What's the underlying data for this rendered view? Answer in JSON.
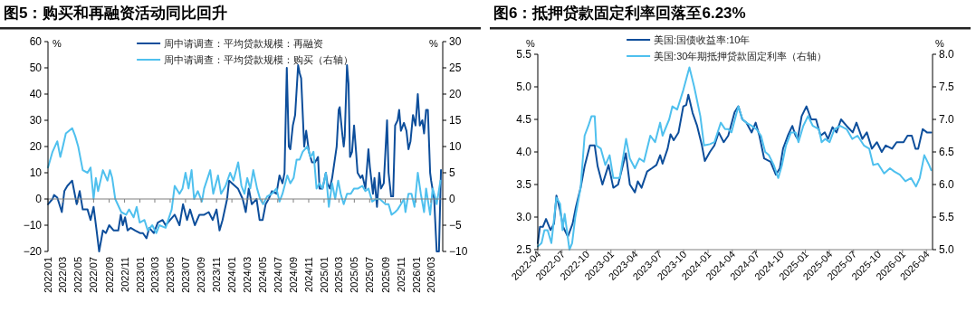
{
  "chart_data": [
    {
      "type": "line",
      "title": "图5：购买和再融资活动同比回升",
      "ylabel": "%",
      "y2label": "%",
      "legend": "top",
      "xlim": [
        "2022-01-01",
        "2026-04-17"
      ],
      "xticks": [
        {
          "value": "2022-01-01",
          "label": "2022/01"
        },
        {
          "value": "2022-03-01",
          "label": "2022/03"
        },
        {
          "value": "2022-05-01",
          "label": "2022/05"
        },
        {
          "value": "2022-07-01",
          "label": "2022/07"
        },
        {
          "value": "2022-09-01",
          "label": "2022/09"
        },
        {
          "value": "2022-11-01",
          "label": "2022/11"
        },
        {
          "value": "2023-01-01",
          "label": "2023/01"
        },
        {
          "value": "2023-03-01",
          "label": "2023/03"
        },
        {
          "value": "2023-05-01",
          "label": "2023/05"
        },
        {
          "value": "2023-07-01",
          "label": "2023/07"
        },
        {
          "value": "2023-09-01",
          "label": "2023/09"
        },
        {
          "value": "2023-11-01",
          "label": "2023/11"
        },
        {
          "value": "2024-01-01",
          "label": "2024/01"
        },
        {
          "value": "2024-03-01",
          "label": "2024/03"
        },
        {
          "value": "2024-05-01",
          "label": "2024/05"
        },
        {
          "value": "2024-07-01",
          "label": "2024/07"
        },
        {
          "value": "2024-09-01",
          "label": "2024/09"
        },
        {
          "value": "2024-11-01",
          "label": "2024/11"
        },
        {
          "value": "2025-01-01",
          "label": "2025/01"
        },
        {
          "value": "2025-03-01",
          "label": "2025/03"
        },
        {
          "value": "2025-05-01",
          "label": "2025/05"
        },
        {
          "value": "2025-07-01",
          "label": "2025/07"
        },
        {
          "value": "2025-09-01",
          "label": "2025/09"
        },
        {
          "value": "2025-11-01",
          "label": "2025/11"
        },
        {
          "value": "2026-01-01",
          "label": "2026/01"
        },
        {
          "value": "2026-03-01",
          "label": "2026/03"
        }
      ],
      "ylim": [
        -20,
        60
      ],
      "yticks": [
        {
          "value": -20,
          "label": "−20"
        },
        {
          "value": -10,
          "label": "−10"
        },
        0,
        10,
        20,
        30,
        40,
        50,
        60
      ],
      "y2lim": [
        -10,
        30
      ],
      "y2ticks": [
        {
          "value": -10,
          "label": "−10"
        },
        {
          "value": -5,
          "label": "−5"
        },
        0,
        5,
        10,
        15,
        20,
        25,
        30
      ],
      "series": [
        {
          "name": "周中请调查：平均贷款规模：再融资",
          "color": "#0d4e9b",
          "x": [
            "2022-01-01",
            "2022-01-19",
            "2022-01-25",
            "2022-02-07",
            "2022-02-25",
            "2022-03-07",
            "2022-03-19",
            "2022-04-07",
            "2022-04-25",
            "2022-05-07",
            "2022-05-19",
            "2022-06-07",
            "2022-06-19",
            "2022-07-01",
            "2022-07-13",
            "2022-07-23",
            "2022-08-07",
            "2022-08-19",
            "2022-09-01",
            "2022-09-19",
            "2022-10-07",
            "2022-10-17",
            "2022-10-25",
            "2022-11-03",
            "2022-11-13",
            "2022-11-25",
            "2022-12-13",
            "2023-01-01",
            "2023-01-13",
            "2023-01-27",
            "2023-02-07",
            "2023-02-25",
            "2023-03-13",
            "2023-04-01",
            "2023-04-13",
            "2023-05-01",
            "2023-05-19",
            "2023-06-07",
            "2023-06-21",
            "2023-07-07",
            "2023-07-19",
            "2023-08-07",
            "2023-08-25",
            "2023-09-13",
            "2023-10-01",
            "2023-10-17",
            "2023-11-01",
            "2023-11-13",
            "2023-11-25",
            "2023-12-13",
            "2023-12-21",
            "2024-01-13",
            "2024-01-25",
            "2024-02-13",
            "2024-02-25",
            "2024-03-08",
            "2024-03-20",
            "2024-04-08",
            "2024-04-20",
            "2024-05-02",
            "2024-05-14",
            "2024-05-26",
            "2024-06-08",
            "2024-06-26",
            "2024-07-08",
            "2024-07-20",
            "2024-07-28",
            "2024-08-06",
            "2024-08-14",
            "2024-08-20",
            "2024-08-30",
            "2024-09-08",
            "2024-09-20",
            "2024-09-26",
            "2024-10-02",
            "2024-10-14",
            "2024-10-22",
            "2024-11-02",
            "2024-11-14",
            "2024-11-26",
            "2024-12-08",
            "2024-12-14",
            "2024-12-26",
            "2025-01-08",
            "2025-01-14",
            "2025-01-24",
            "2025-02-02",
            "2025-02-14",
            "2025-02-20",
            "2025-02-28",
            "2025-03-04",
            "2025-03-14",
            "2025-03-20",
            "2025-03-24",
            "2025-04-02",
            "2025-04-08",
            "2025-04-14",
            "2025-04-22",
            "2025-04-30",
            "2025-05-08",
            "2025-05-14",
            "2025-05-26",
            "2025-06-02",
            "2025-06-14",
            "2025-06-26",
            "2025-07-02",
            "2025-07-14",
            "2025-07-20",
            "2025-07-30",
            "2025-08-08",
            "2025-08-15",
            "2025-08-26",
            "2025-09-08",
            "2025-09-14",
            "2025-09-24",
            "2025-10-02",
            "2025-10-10",
            "2025-10-20",
            "2025-10-26",
            "2025-11-02",
            "2025-11-14",
            "2025-11-24",
            "2025-12-02",
            "2025-12-10",
            "2025-12-20",
            "2025-12-30",
            "2026-01-08",
            "2026-01-16",
            "2026-01-26",
            "2026-02-02",
            "2026-02-10",
            "2026-02-17",
            "2026-02-26",
            "2026-03-02",
            "2026-03-14",
            "2026-03-24",
            "2026-04-02",
            "2026-04-10"
          ],
          "values": [
            -2,
            0,
            1.5,
            0.5,
            -5,
            3,
            5,
            7,
            -2,
            3,
            -4,
            -4,
            -8,
            -3,
            -12,
            -20,
            -12,
            -13,
            -10,
            -12,
            -12,
            -6,
            -10,
            -7,
            -12,
            -11,
            -12,
            -13,
            -13,
            -15,
            -11,
            -13,
            -9,
            -8,
            -10,
            -8,
            -6,
            -10,
            -2,
            -8,
            -4,
            -10,
            -6,
            -6,
            -5,
            -8,
            -4,
            -12,
            -8,
            0,
            7,
            5,
            4,
            0,
            -5,
            4,
            -2,
            0,
            -8,
            -8,
            -2,
            0,
            3,
            2,
            9,
            6,
            10,
            50,
            20,
            19,
            28,
            32,
            51,
            48,
            46,
            20,
            26,
            18,
            14,
            14,
            16,
            4,
            4,
            10,
            6,
            4,
            8,
            16,
            20,
            34,
            35,
            25,
            20,
            24,
            51,
            44,
            16,
            18,
            28,
            18,
            10,
            8,
            9,
            4,
            19,
            12,
            2,
            8,
            -3,
            10,
            4,
            6,
            30,
            10,
            1,
            1,
            28,
            30,
            34,
            26,
            29,
            26,
            19,
            22,
            32,
            28,
            40,
            28,
            30,
            25,
            34,
            34,
            10,
            7,
            0,
            -20,
            -20,
            11
          ]
        },
        {
          "name": "周中请调查：平均贷款规模：购买（右轴）",
          "color": "#4fc0ee",
          "axis": "y2",
          "x": [
            "2022-01-01",
            "2022-01-19",
            "2022-02-07",
            "2022-02-19",
            "2022-03-01",
            "2022-03-13",
            "2022-04-07",
            "2022-04-19",
            "2022-05-01",
            "2022-05-19",
            "2022-06-07",
            "2022-06-19",
            "2022-07-01",
            "2022-07-10",
            "2022-07-19",
            "2022-08-07",
            "2022-08-25",
            "2022-09-04",
            "2022-09-13",
            "2022-09-25",
            "2022-10-19",
            "2022-11-07",
            "2022-11-19",
            "2022-12-07",
            "2022-12-19",
            "2022-12-31",
            "2023-01-19",
            "2023-02-01",
            "2023-02-19",
            "2023-03-07",
            "2023-03-19",
            "2023-04-13",
            "2023-05-07",
            "2023-05-19",
            "2023-06-07",
            "2023-06-19",
            "2023-07-01",
            "2023-07-13",
            "2023-07-25",
            "2023-08-04",
            "2023-08-19",
            "2023-09-04",
            "2023-09-13",
            "2023-10-07",
            "2023-10-19",
            "2023-11-07",
            "2023-11-19",
            "2023-12-07",
            "2023-12-25",
            "2024-01-07",
            "2024-01-26",
            "2024-02-08",
            "2024-02-20",
            "2024-03-02",
            "2024-03-14",
            "2024-03-26",
            "2024-04-10",
            "2024-04-22",
            "2024-05-04",
            "2024-05-20",
            "2024-06-08",
            "2024-06-26",
            "2024-07-08",
            "2024-07-20",
            "2024-08-08",
            "2024-08-20",
            "2024-09-02",
            "2024-09-14",
            "2024-09-26",
            "2024-10-08",
            "2024-10-26",
            "2024-11-08",
            "2024-11-20",
            "2024-12-02",
            "2024-12-14",
            "2024-12-26",
            "2025-01-08",
            "2025-01-20",
            "2025-02-02",
            "2025-02-14",
            "2025-02-26",
            "2025-03-08",
            "2025-03-20",
            "2025-04-02",
            "2025-04-17",
            "2025-04-30",
            "2025-05-16",
            "2025-06-02",
            "2025-06-14",
            "2025-06-26",
            "2025-07-11",
            "2025-07-26",
            "2025-08-10",
            "2025-09-02",
            "2025-09-14",
            "2025-09-26",
            "2025-10-10",
            "2025-10-20",
            "2025-11-02",
            "2025-11-14",
            "2025-11-20",
            "2025-12-02",
            "2025-12-14",
            "2025-12-26",
            "2026-01-08",
            "2026-01-20",
            "2026-02-02",
            "2026-02-10",
            "2026-02-26",
            "2026-03-08",
            "2026-03-20",
            "2026-03-24",
            "2026-04-08"
          ],
          "values": [
            6,
            9,
            11,
            8,
            10,
            12.5,
            13.5,
            12,
            10,
            5.5,
            5,
            6,
            0,
            4,
            1.5,
            5.5,
            3.5,
            5.5,
            4,
            0,
            -2.5,
            -3,
            -2,
            -3.5,
            -1.5,
            -4.5,
            -4,
            -6,
            -5,
            -6.5,
            -5,
            -5.5,
            -2,
            2.5,
            1,
            2,
            5,
            2,
            5.5,
            0,
            1.5,
            -0.5,
            2,
            5.5,
            1,
            4.5,
            1,
            2.5,
            5,
            3.5,
            7,
            2.5,
            1,
            4,
            2,
            5.5,
            2,
            0,
            -1,
            0.5,
            1,
            2,
            -0.5,
            1,
            4.5,
            3,
            4,
            7.5,
            7.5,
            9,
            10,
            8,
            9,
            2,
            3,
            2,
            5,
            -1.5,
            3,
            0,
            3.5,
            1,
            -1,
            1,
            1,
            2,
            2,
            2.5,
            1.5,
            2,
            -0.5,
            0,
            0,
            -1,
            -1,
            -3,
            -2.5,
            -2,
            -1,
            0,
            -2.5,
            1,
            1,
            -1.5,
            5,
            1,
            -2.5,
            2,
            -3,
            2,
            0,
            -1,
            3.5
          ]
        }
      ]
    },
    {
      "type": "line",
      "title": "图6：抵押贷款固定利率回落至6.23%",
      "ylabel": "%",
      "y2label": "%",
      "legend": "top",
      "xlim": [
        "2022-04-01",
        "2026-04-24"
      ],
      "xticks": [
        {
          "value": "2022-04-01",
          "label": "2022-04"
        },
        {
          "value": "2022-07-01",
          "label": "2022-07"
        },
        {
          "value": "2022-10-01",
          "label": "2022-10"
        },
        {
          "value": "2023-01-01",
          "label": "2023-01"
        },
        {
          "value": "2023-04-01",
          "label": "2023-04"
        },
        {
          "value": "2023-07-01",
          "label": "2023-07"
        },
        {
          "value": "2023-10-01",
          "label": "2023-10"
        },
        {
          "value": "2024-01-01",
          "label": "2024-01"
        },
        {
          "value": "2024-04-01",
          "label": "2024-04"
        },
        {
          "value": "2024-07-01",
          "label": "2024-07"
        },
        {
          "value": "2024-10-01",
          "label": "2024-10"
        },
        {
          "value": "2025-01-01",
          "label": "2025-01"
        },
        {
          "value": "2025-04-01",
          "label": "2025-04"
        },
        {
          "value": "2025-07-01",
          "label": "2025-07"
        },
        {
          "value": "2025-10-01",
          "label": "2025-10"
        },
        {
          "value": "2026-01-01",
          "label": "2026-01"
        },
        {
          "value": "2026-04-01",
          "label": "2026-04"
        }
      ],
      "ylim": [
        2.5,
        5.5
      ],
      "yticks": [
        2.5,
        {
          "value": 3,
          "label": "3.0"
        },
        3.5,
        {
          "value": 4,
          "label": "4.0"
        },
        4.5,
        {
          "value": 5,
          "label": "5.0"
        },
        5.5
      ],
      "y2lim": [
        5,
        8
      ],
      "y2ticks": [
        {
          "value": 5,
          "label": "5.0"
        },
        5.5,
        {
          "value": 6,
          "label": "6.0"
        },
        6.5,
        {
          "value": 7,
          "label": "7.0"
        },
        7.5,
        {
          "value": 8,
          "label": "8.0"
        }
      ],
      "series": [
        {
          "name": "美国:国债收益率:10年",
          "color": "#0d4e9b",
          "x": [
            "2022-04-01",
            "2022-04-09",
            "2022-04-20",
            "2022-05-02",
            "2022-05-19",
            "2022-06-01",
            "2022-06-10",
            "2022-06-24",
            "2022-07-05",
            "2022-07-23",
            "2022-08-10",
            "2022-08-22",
            "2022-09-09",
            "2022-09-24",
            "2022-10-14",
            "2022-11-01",
            "2022-11-12",
            "2022-11-30",
            "2022-12-23",
            "2023-01-10",
            "2023-01-28",
            "2023-02-26",
            "2023-03-13",
            "2023-04-01",
            "2023-04-12",
            "2023-04-26",
            "2023-05-17",
            "2023-06-04",
            "2023-06-21",
            "2023-07-05",
            "2023-07-14",
            "2023-08-02",
            "2023-08-13",
            "2023-08-25",
            "2023-09-12",
            "2023-09-30",
            "2023-10-11",
            "2023-10-19",
            "2023-11-04",
            "2023-11-21",
            "2023-12-09",
            "2023-12-20",
            "2024-01-08",
            "2024-01-25",
            "2024-02-10",
            "2024-02-29",
            "2024-03-17",
            "2024-04-10",
            "2024-04-24",
            "2024-05-09",
            "2024-05-24",
            "2024-06-13",
            "2024-06-28",
            "2024-07-12",
            "2024-07-30",
            "2024-08-23",
            "2024-09-12",
            "2024-09-27",
            "2024-10-09",
            "2024-10-27",
            "2024-11-13",
            "2024-11-25",
            "2024-12-03",
            "2024-12-18",
            "2025-01-05",
            "2025-01-23",
            "2025-02-10",
            "2025-02-27",
            "2025-03-15",
            "2025-03-27",
            "2025-04-13",
            "2025-04-28",
            "2025-05-15",
            "2025-06-05",
            "2025-06-28",
            "2025-07-12",
            "2025-08-03",
            "2025-08-20",
            "2025-09-08",
            "2025-09-27",
            "2025-10-15",
            "2025-10-30",
            "2025-11-23",
            "2025-12-10",
            "2026-01-05",
            "2026-01-20",
            "2026-02-05",
            "2026-02-19",
            "2026-03-01",
            "2026-03-18",
            "2026-04-03",
            "2026-04-19"
          ],
          "values": [
            2.6,
            2.85,
            2.85,
            2.97,
            2.8,
            2.9,
            3.33,
            3.1,
            2.85,
            2.7,
            2.9,
            3.15,
            3.45,
            3.78,
            4.1,
            4.1,
            3.78,
            3.5,
            3.8,
            3.45,
            3.5,
            3.98,
            3.5,
            3.38,
            3.55,
            3.45,
            3.7,
            3.75,
            3.8,
            3.95,
            3.82,
            4.05,
            4.27,
            4.18,
            4.3,
            4.7,
            4.72,
            4.88,
            4.6,
            4.4,
            4.1,
            3.86,
            4,
            4.1,
            4.3,
            4.15,
            4.25,
            4.61,
            4.7,
            4.5,
            4.45,
            4.3,
            4.45,
            4.25,
            3.9,
            3.85,
            3.65,
            3.75,
            4.05,
            4.25,
            4.4,
            4.25,
            4.2,
            4.55,
            4.7,
            4.5,
            4.5,
            4.25,
            4.3,
            4.2,
            4.38,
            4.3,
            4.5,
            4.4,
            4.3,
            4.45,
            4.2,
            4.3,
            4.05,
            4.15,
            4,
            4.1,
            4.05,
            4.15,
            4.15,
            4.25,
            4.25,
            4.05,
            4.05,
            4.35,
            4.3,
            4.3
          ]
        },
        {
          "name": "美国:30年期抵押贷款固定利率（右轴）",
          "color": "#4fc0ee",
          "axis": "y2",
          "x": [
            "2022-04-01",
            "2022-04-15",
            "2022-04-26",
            "2022-05-08",
            "2022-05-22",
            "2022-06-10",
            "2022-06-24",
            "2022-07-03",
            "2022-07-11",
            "2022-07-29",
            "2022-08-08",
            "2022-08-20",
            "2022-09-09",
            "2022-09-24",
            "2022-10-08",
            "2022-10-20",
            "2022-11-01",
            "2022-11-07",
            "2022-11-24",
            "2022-12-11",
            "2022-12-27",
            "2023-01-10",
            "2023-02-03",
            "2023-02-27",
            "2023-03-13",
            "2023-04-01",
            "2023-04-18",
            "2023-05-05",
            "2023-05-29",
            "2023-06-16",
            "2023-07-05",
            "2023-07-14",
            "2023-08-08",
            "2023-08-20",
            "2023-09-07",
            "2023-09-30",
            "2023-10-23",
            "2023-11-10",
            "2023-12-03",
            "2023-12-17",
            "2024-01-08",
            "2024-01-25",
            "2024-02-18",
            "2024-03-05",
            "2024-03-17",
            "2024-03-29",
            "2024-04-24",
            "2024-05-09",
            "2024-05-24",
            "2024-06-13",
            "2024-07-01",
            "2024-07-18",
            "2024-08-03",
            "2024-08-17",
            "2024-09-04",
            "2024-09-21",
            "2024-10-05",
            "2024-10-20",
            "2024-11-08",
            "2024-11-25",
            "2024-12-06",
            "2024-12-24",
            "2025-01-11",
            "2025-01-29",
            "2025-02-21",
            "2025-03-03",
            "2025-03-17",
            "2025-04-02",
            "2025-04-20",
            "2025-05-12",
            "2025-06-05",
            "2025-06-26",
            "2025-07-16",
            "2025-08-09",
            "2025-08-29",
            "2025-09-13",
            "2025-10-01",
            "2025-10-24",
            "2025-11-15",
            "2025-12-01",
            "2025-12-22",
            "2026-01-12",
            "2026-02-02",
            "2026-02-21",
            "2026-03-07",
            "2026-03-24",
            "2026-04-11",
            "2026-04-19"
          ],
          "values": [
            5.05,
            5.1,
            5.3,
            5.3,
            5.1,
            5.8,
            5.7,
            5.3,
            5.55,
            5,
            5.1,
            5.5,
            5.95,
            6.75,
            6.9,
            7.05,
            7.05,
            6.6,
            6.55,
            6.3,
            6.45,
            6.1,
            6.1,
            6.7,
            6.4,
            6.25,
            6.4,
            6.35,
            6.75,
            6.65,
            6.95,
            6.75,
            7,
            7.2,
            7.15,
            7.45,
            7.8,
            7.5,
            7.05,
            6.6,
            6.62,
            6.65,
            6.95,
            6.85,
            6.85,
            6.8,
            7.2,
            7,
            6.95,
            6.9,
            6.85,
            6.75,
            6.5,
            6.45,
            6.3,
            6.1,
            6.3,
            6.6,
            6.8,
            6.8,
            6.65,
            6.9,
            7.05,
            6.9,
            6.85,
            6.65,
            6.7,
            6.65,
            6.85,
            6.9,
            6.85,
            6.7,
            6.75,
            6.6,
            6.55,
            6.3,
            6.32,
            6.17,
            6.25,
            6.2,
            6.15,
            6.05,
            6.1,
            5.97,
            6.1,
            6.45,
            6.3,
            6.22
          ]
        }
      ]
    }
  ]
}
